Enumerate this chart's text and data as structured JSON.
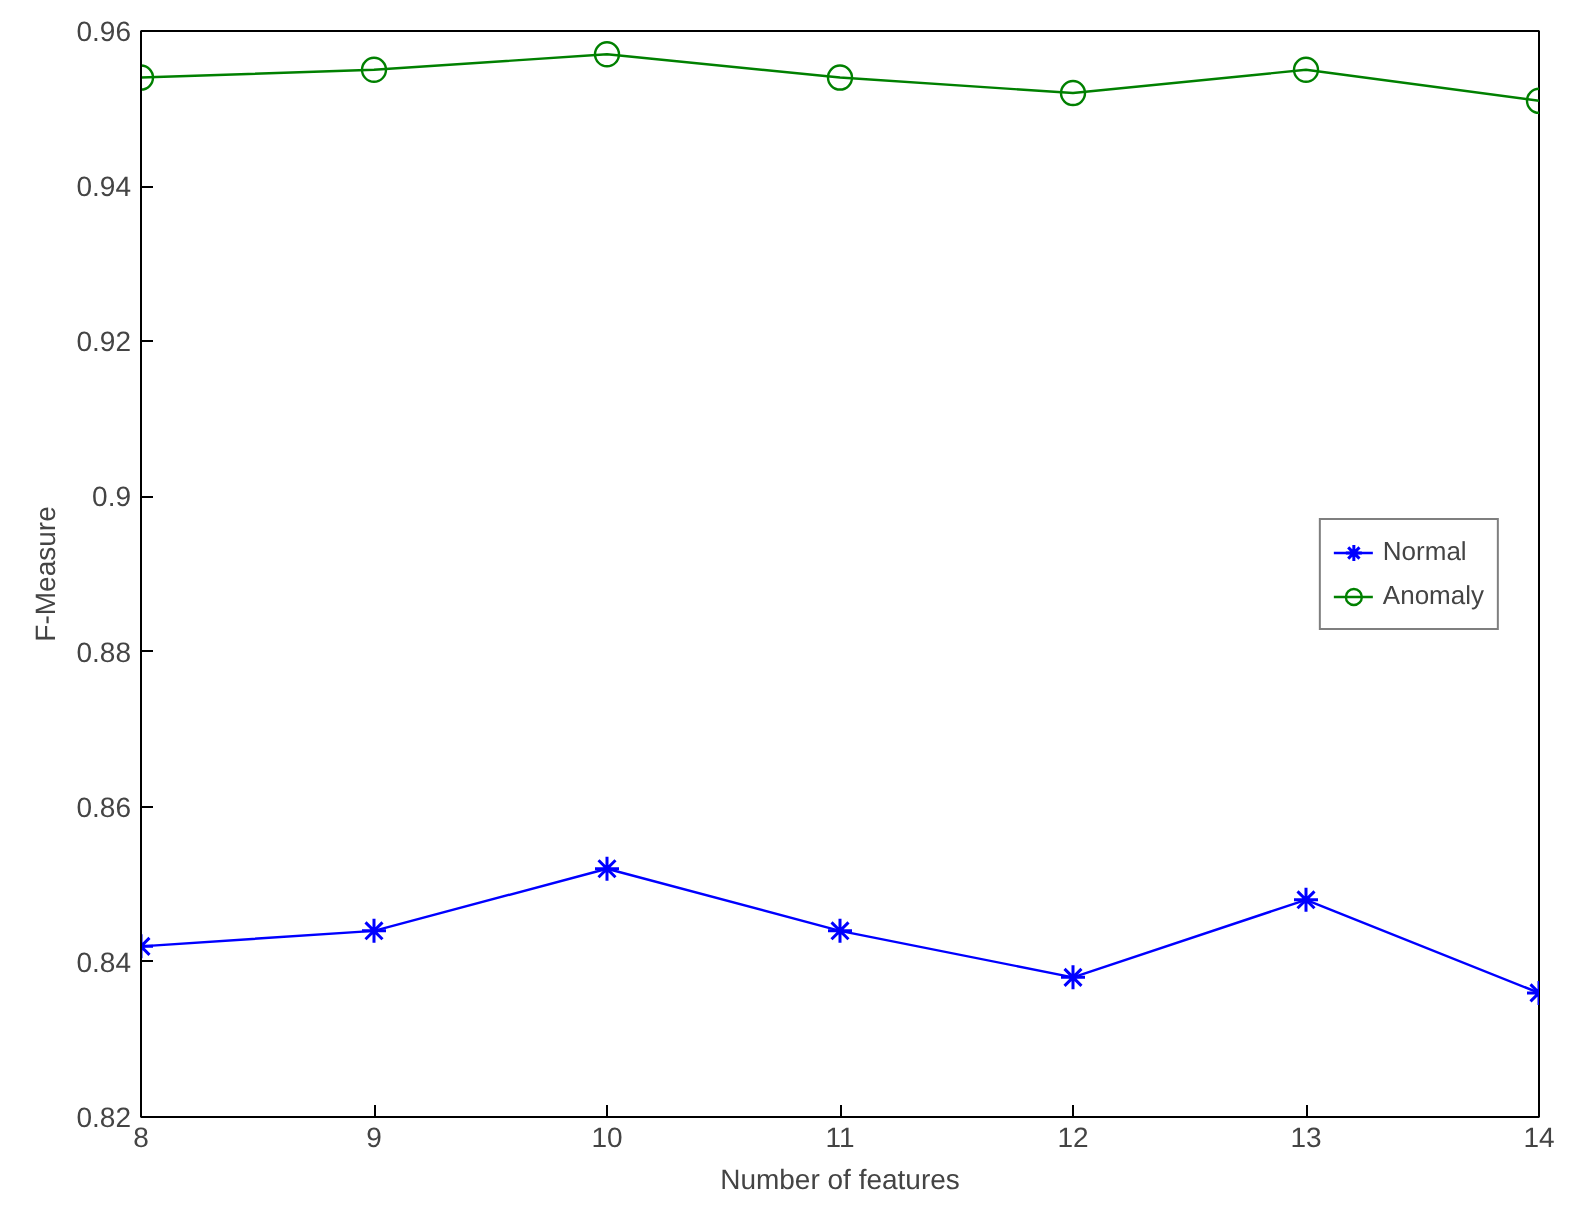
{
  "chart_data": {
    "type": "line",
    "xlabel": "Number of features",
    "ylabel": "F-Measure",
    "x": [
      8,
      9,
      10,
      11,
      12,
      13,
      14
    ],
    "series": [
      {
        "name": "Normal",
        "color": "#0000ff",
        "marker": "cross",
        "values": [
          0.842,
          0.844,
          0.852,
          0.844,
          0.838,
          0.848,
          0.836
        ]
      },
      {
        "name": "Anomaly",
        "color": "#008000",
        "marker": "circle",
        "values": [
          0.954,
          0.955,
          0.957,
          0.954,
          0.952,
          0.955,
          0.951
        ]
      }
    ],
    "xlim": [
      8,
      14
    ],
    "ylim": [
      0.82,
      0.96
    ],
    "xticks": [
      8,
      9,
      10,
      11,
      12,
      13,
      14
    ],
    "yticks": [
      0.82,
      0.84,
      0.86,
      0.88,
      0.9,
      0.92,
      0.94,
      0.96
    ],
    "grid": false,
    "legend": "right",
    "line_style": "solid"
  }
}
